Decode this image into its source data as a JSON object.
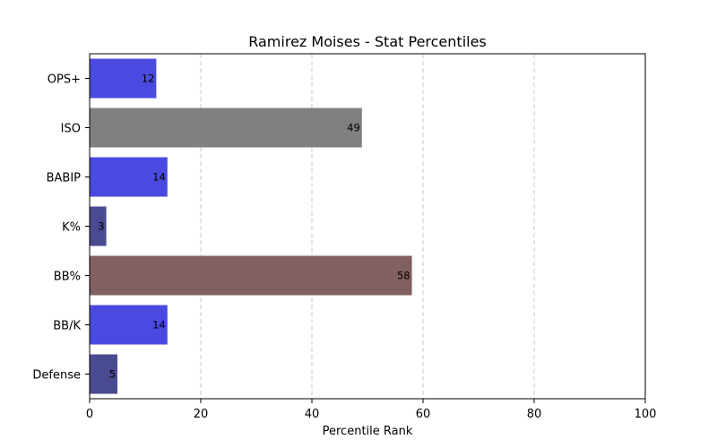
{
  "chart_data": {
    "type": "bar",
    "orientation": "horizontal",
    "title": "Ramirez Moises - Stat Percentiles",
    "xlabel": "Percentile Rank",
    "ylabel": "",
    "xlim": [
      0,
      100
    ],
    "x_ticks": [
      0,
      20,
      40,
      60,
      80,
      100
    ],
    "grid": "x-axis dashed",
    "categories": [
      "OPS+",
      "ISO",
      "BABIP",
      "K%",
      "BB%",
      "BB/K",
      "Defense"
    ],
    "values": [
      12,
      49,
      14,
      3,
      58,
      14,
      5
    ],
    "colors": [
      "#4b4ae0",
      "#808080",
      "#4b4ae0",
      "#4a4a90",
      "#806060",
      "#4b4ae0",
      "#4a4a90"
    ]
  }
}
